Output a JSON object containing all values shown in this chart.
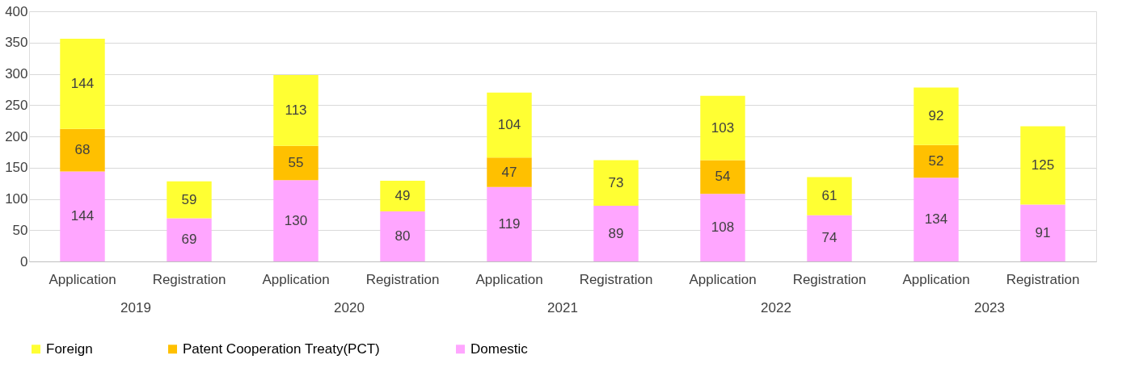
{
  "chart_data": {
    "type": "bar",
    "stacked": true,
    "categories": [
      "Application",
      "Registration",
      "Application",
      "Registration",
      "Application",
      "Registration",
      "Application",
      "Registration",
      "Application",
      "Registration"
    ],
    "series": [
      {
        "name": "Domestic",
        "color": "#ffa6ff",
        "values": [
          144,
          69,
          130,
          80,
          119,
          89,
          108,
          74,
          134,
          91
        ]
      },
      {
        "name": "Patent Cooperation Treaty(PCT)",
        "color": "#ffc000",
        "values": [
          68,
          null,
          55,
          null,
          47,
          null,
          54,
          null,
          52,
          null
        ]
      },
      {
        "name": "Foreign",
        "color": "#ffff33",
        "values": [
          144,
          59,
          113,
          49,
          104,
          73,
          103,
          61,
          92,
          125
        ]
      }
    ],
    "annotations": [
      "2019",
      "2020",
      "2021",
      "2022",
      "2023"
    ],
    "ylim": [
      0,
      400
    ],
    "yticks": [
      0,
      50,
      100,
      150,
      200,
      250,
      300,
      350,
      400
    ],
    "grid": "y",
    "legend": "bottom",
    "data_labels": true
  }
}
